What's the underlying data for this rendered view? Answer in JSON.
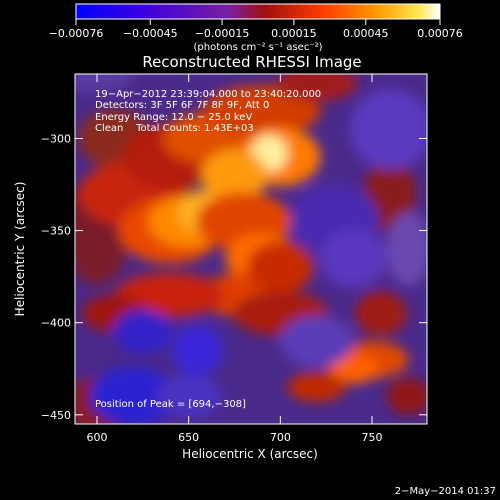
{
  "chart_data": {
    "type": "heatmap",
    "title": "Reconstructed RHESSI Image",
    "xlabel": "Heliocentric X (arcsec)",
    "ylabel": "Heliocentric Y (arcsec)",
    "xlim": [
      588,
      780
    ],
    "ylim": [
      -455,
      -265
    ],
    "x_ticks": [
      600,
      650,
      700,
      750
    ],
    "y_ticks": [
      -300,
      -350,
      -400,
      -450
    ],
    "x_tick_labels": [
      "600",
      "650",
      "700",
      "750"
    ],
    "y_tick_labels": [
      "−300",
      "−350",
      "−400",
      "−450"
    ],
    "colorbar": {
      "min": -0.00076,
      "max": 0.00076,
      "ticks": [
        -0.00076,
        -0.00045,
        -0.00015,
        0.00015,
        0.00045,
        0.00076
      ],
      "tick_labels": [
        "−0.00076",
        "−0.00045",
        "−0.00015",
        "0.00015",
        "0.00045",
        "0.00076"
      ],
      "units_label": "(photons cm⁻² s⁻¹ asec⁻²)",
      "colormap": [
        "#0000ff",
        "#5a00c8",
        "#7a1fa0",
        "#b4140a",
        "#ff3c00",
        "#ff9600",
        "#ffe650",
        "#ffffff"
      ]
    },
    "annotations": {
      "time_range": "19−Apr−2012 23:39:04.000 to 23:40:20.000",
      "detectors": "Detectors: 3F 5F 6F 7F 8F 9F, Att 0",
      "energy": "Energy Range: 12.0 − 25.0 keV",
      "clean": "Clean    Total Counts: 1.43E+03",
      "peak": "Position of Peak = [694,−308]"
    },
    "peak": {
      "x": 694,
      "y": -308
    },
    "footer_date": "2−May−2014 01:37"
  }
}
